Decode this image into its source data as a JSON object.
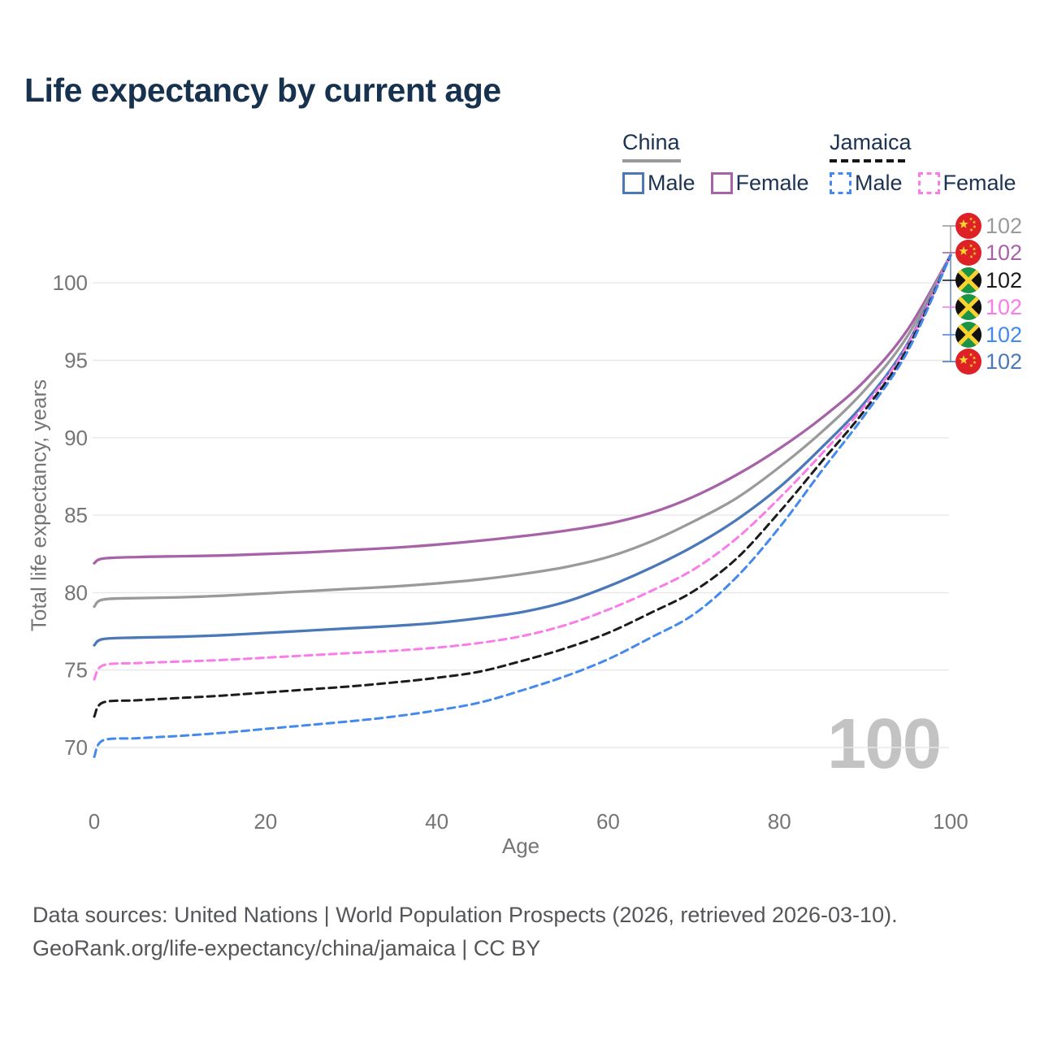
{
  "title": "Life expectancy by current age",
  "watermark": "100",
  "legend": {
    "china": {
      "label": "China",
      "male_label": "Male",
      "female_label": "Female"
    },
    "jamaica": {
      "label": "Jamaica",
      "male_label": "Male",
      "female_label": "Female"
    }
  },
  "colors": {
    "china_male": "#4a78b8",
    "china_female": "#a763a8",
    "china_all": "#9a9a9a",
    "jamaica_male": "#4389ee",
    "jamaica_female": "#fa7ce8",
    "jamaica_all": "#1c1c1c",
    "grid": "#e8e8e8",
    "tick_text": "#757575",
    "heading_text": "#1c3354",
    "watermark_text": "#c3c3c3",
    "flag_red": "#de2126",
    "flag_yellow": "#fcd22d",
    "flag_green": "#1b9447",
    "flag_black": "#111111"
  },
  "chart_data": {
    "type": "line",
    "title": "Life expectancy by current age",
    "xlabel": "Age",
    "ylabel": "Total life expectancy, years",
    "xlim": [
      0,
      100
    ],
    "ylim": [
      68,
      103
    ],
    "x_ticks": [
      0,
      20,
      40,
      60,
      80,
      100
    ],
    "y_ticks": [
      70,
      75,
      80,
      85,
      90,
      95,
      100
    ],
    "grid": true,
    "legend_position": "top-right",
    "x": [
      0,
      1,
      5,
      10,
      15,
      20,
      25,
      30,
      35,
      40,
      45,
      50,
      55,
      60,
      65,
      70,
      75,
      80,
      85,
      90,
      95,
      100
    ],
    "series": [
      {
        "name": "China Female",
        "country": "china",
        "sex": "female",
        "style": "solid",
        "color": "#a763a8",
        "end_value": "102",
        "values": [
          81.9,
          82.2,
          82.3,
          82.35,
          82.4,
          82.5,
          82.6,
          82.75,
          82.9,
          83.1,
          83.35,
          83.65,
          84.0,
          84.45,
          85.15,
          86.2,
          87.6,
          89.3,
          91.3,
          93.7,
          97.0,
          101.8
        ]
      },
      {
        "name": "China",
        "country": "china",
        "sex": "all",
        "style": "solid",
        "color": "#9a9a9a",
        "end_value": "102",
        "values": [
          79.1,
          79.55,
          79.65,
          79.7,
          79.8,
          79.95,
          80.1,
          80.25,
          80.4,
          80.6,
          80.85,
          81.2,
          81.65,
          82.3,
          83.3,
          84.6,
          86.1,
          88.1,
          90.4,
          93.1,
          96.6,
          101.8
        ]
      },
      {
        "name": "China Male",
        "country": "china",
        "sex": "male",
        "style": "solid",
        "color": "#4a78b8",
        "end_value": "102",
        "values": [
          76.6,
          77.0,
          77.1,
          77.15,
          77.25,
          77.4,
          77.55,
          77.7,
          77.85,
          78.05,
          78.35,
          78.75,
          79.4,
          80.4,
          81.6,
          83.0,
          84.7,
          86.8,
          89.4,
          92.3,
          96.1,
          101.8
        ]
      },
      {
        "name": "Jamaica Female",
        "country": "jamaica",
        "sex": "female",
        "style": "dashed",
        "color": "#fa7ce8",
        "end_value": "102",
        "values": [
          74.4,
          75.3,
          75.45,
          75.55,
          75.65,
          75.8,
          75.95,
          76.1,
          76.25,
          76.45,
          76.75,
          77.2,
          77.9,
          78.9,
          80.1,
          81.5,
          83.5,
          86.1,
          89.0,
          92.1,
          96.0,
          101.8
        ]
      },
      {
        "name": "Jamaica",
        "country": "jamaica",
        "sex": "all",
        "style": "dashed",
        "color": "#1c1c1c",
        "end_value": "102",
        "values": [
          72.0,
          72.9,
          73.05,
          73.2,
          73.35,
          73.55,
          73.75,
          73.95,
          74.2,
          74.5,
          74.9,
          75.6,
          76.4,
          77.4,
          78.7,
          80.1,
          82.2,
          85.2,
          88.5,
          91.8,
          95.8,
          101.8
        ]
      },
      {
        "name": "Jamaica Male",
        "country": "jamaica",
        "sex": "male",
        "style": "dashed",
        "color": "#4389ee",
        "end_value": "102",
        "values": [
          69.4,
          70.45,
          70.6,
          70.75,
          70.95,
          71.2,
          71.45,
          71.7,
          72.0,
          72.4,
          72.9,
          73.7,
          74.6,
          75.7,
          77.1,
          78.6,
          81.0,
          84.2,
          87.9,
          91.5,
          95.6,
          101.8
        ]
      }
    ]
  },
  "right_labels": [
    {
      "flag": "china",
      "value": "102",
      "color": "#9a9a9a"
    },
    {
      "flag": "china",
      "value": "102",
      "color": "#a763a8"
    },
    {
      "flag": "jamaica",
      "value": "102",
      "color": "#1c1c1c"
    },
    {
      "flag": "jamaica",
      "value": "102",
      "color": "#fa7ce8"
    },
    {
      "flag": "jamaica",
      "value": "102",
      "color": "#4389ee"
    },
    {
      "flag": "china",
      "value": "102",
      "color": "#4a78b8"
    }
  ],
  "footer": {
    "line1": "Data sources: United Nations | World Population Prospects (2026, retrieved 2026-03-10).",
    "line2": "GeoRank.org/life-expectancy/china/jamaica | CC BY"
  }
}
